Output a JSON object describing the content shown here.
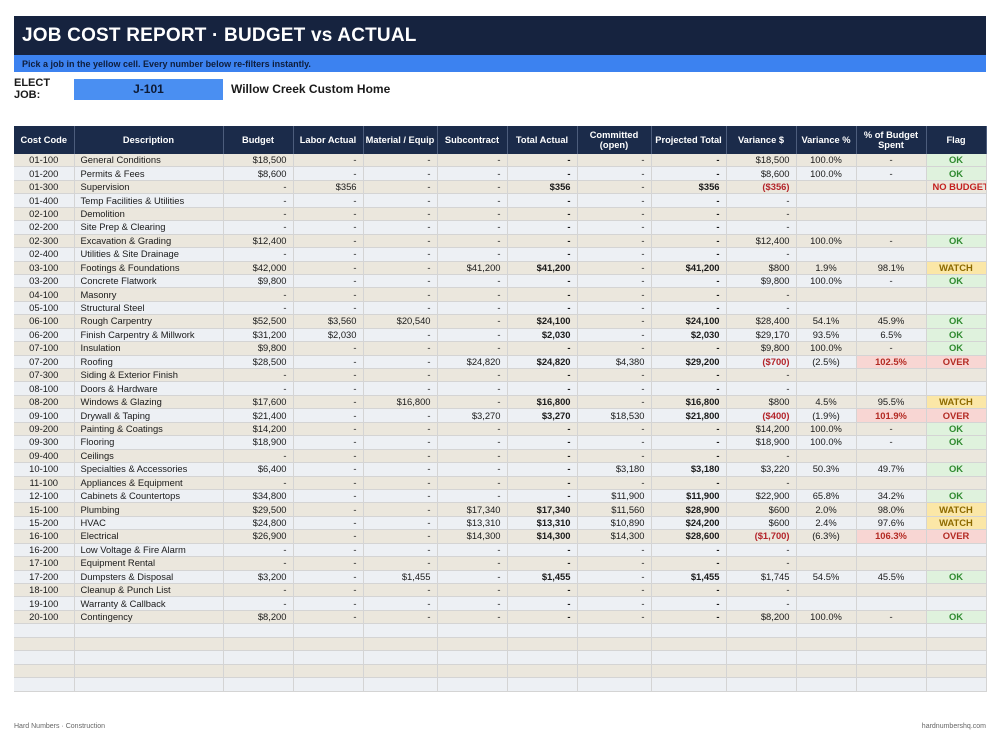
{
  "header": {
    "title": "JOB COST REPORT  ·  BUDGET vs ACTUAL",
    "instruction": "Pick a job in the yellow cell. Every number below re-filters instantly."
  },
  "job": {
    "label": "ELECT JOB:",
    "value": "J-101",
    "name": "Willow Creek Custom Home"
  },
  "columns": [
    "Cost Code",
    "Description",
    "Budget",
    "Labor Actual",
    "Material / Equip",
    "Subcontract",
    "Total Actual",
    "Committed (open)",
    "Projected Total",
    "Variance $",
    "Variance %",
    "% of Budget Spent",
    "Flag"
  ],
  "rows": [
    {
      "code": "01-100",
      "desc": "General Conditions",
      "budget": "$18,500",
      "labor": "-",
      "material": "-",
      "sub": "-",
      "total": "-",
      "committed": "-",
      "projected": "-",
      "var": "$18,500",
      "varpct": "100.0%",
      "spent": "-",
      "flag": "OK",
      "flag_type": "ok"
    },
    {
      "code": "01-200",
      "desc": "Permits & Fees",
      "budget": "$8,600",
      "labor": "-",
      "material": "-",
      "sub": "-",
      "total": "-",
      "committed": "-",
      "projected": "-",
      "var": "$8,600",
      "varpct": "100.0%",
      "spent": "-",
      "flag": "OK",
      "flag_type": "ok"
    },
    {
      "code": "01-300",
      "desc": "Supervision",
      "budget": "-",
      "labor": "$356",
      "material": "-",
      "sub": "-",
      "total": "$356",
      "committed": "-",
      "projected": "$356",
      "var": "($356)",
      "var_red": true,
      "varpct": "",
      "spent": "",
      "flag": "NO BUDGET",
      "flag_type": "nob"
    },
    {
      "code": "01-400",
      "desc": "Temp Facilities & Utilities",
      "budget": "-",
      "labor": "-",
      "material": "-",
      "sub": "-",
      "total": "-",
      "committed": "-",
      "projected": "-",
      "var": "-",
      "varpct": "",
      "spent": "",
      "flag": "",
      "flag_type": ""
    },
    {
      "code": "02-100",
      "desc": "Demolition",
      "budget": "-",
      "labor": "-",
      "material": "-",
      "sub": "-",
      "total": "-",
      "committed": "-",
      "projected": "-",
      "var": "-",
      "varpct": "",
      "spent": "",
      "flag": "",
      "flag_type": ""
    },
    {
      "code": "02-200",
      "desc": "Site Prep & Clearing",
      "budget": "-",
      "labor": "-",
      "material": "-",
      "sub": "-",
      "total": "-",
      "committed": "-",
      "projected": "-",
      "var": "-",
      "varpct": "",
      "spent": "",
      "flag": "",
      "flag_type": ""
    },
    {
      "code": "02-300",
      "desc": "Excavation & Grading",
      "budget": "$12,400",
      "labor": "-",
      "material": "-",
      "sub": "-",
      "total": "-",
      "committed": "-",
      "projected": "-",
      "var": "$12,400",
      "varpct": "100.0%",
      "spent": "-",
      "flag": "OK",
      "flag_type": "ok"
    },
    {
      "code": "02-400",
      "desc": "Utilities & Site Drainage",
      "budget": "-",
      "labor": "-",
      "material": "-",
      "sub": "-",
      "total": "-",
      "committed": "-",
      "projected": "-",
      "var": "-",
      "varpct": "",
      "spent": "",
      "flag": "",
      "flag_type": ""
    },
    {
      "code": "03-100",
      "desc": "Footings & Foundations",
      "budget": "$42,000",
      "labor": "-",
      "material": "-",
      "sub": "$41,200",
      "total": "$41,200",
      "committed": "-",
      "projected": "$41,200",
      "var": "$800",
      "varpct": "1.9%",
      "spent": "98.1%",
      "flag": "WATCH",
      "flag_type": "watch"
    },
    {
      "code": "03-200",
      "desc": "Concrete Flatwork",
      "budget": "$9,800",
      "labor": "-",
      "material": "-",
      "sub": "-",
      "total": "-",
      "committed": "-",
      "projected": "-",
      "var": "$9,800",
      "varpct": "100.0%",
      "spent": "-",
      "flag": "OK",
      "flag_type": "ok"
    },
    {
      "code": "04-100",
      "desc": "Masonry",
      "budget": "-",
      "labor": "-",
      "material": "-",
      "sub": "-",
      "total": "-",
      "committed": "-",
      "projected": "-",
      "var": "-",
      "varpct": "",
      "spent": "",
      "flag": "",
      "flag_type": ""
    },
    {
      "code": "05-100",
      "desc": "Structural Steel",
      "budget": "-",
      "labor": "-",
      "material": "-",
      "sub": "-",
      "total": "-",
      "committed": "-",
      "projected": "-",
      "var": "-",
      "varpct": "",
      "spent": "",
      "flag": "",
      "flag_type": ""
    },
    {
      "code": "06-100",
      "desc": "Rough Carpentry",
      "budget": "$52,500",
      "labor": "$3,560",
      "material": "$20,540",
      "sub": "-",
      "total": "$24,100",
      "committed": "-",
      "projected": "$24,100",
      "var": "$28,400",
      "varpct": "54.1%",
      "spent": "45.9%",
      "flag": "OK",
      "flag_type": "ok"
    },
    {
      "code": "06-200",
      "desc": "Finish Carpentry & Millwork",
      "budget": "$31,200",
      "labor": "$2,030",
      "material": "-",
      "sub": "-",
      "total": "$2,030",
      "committed": "-",
      "projected": "$2,030",
      "var": "$29,170",
      "varpct": "93.5%",
      "spent": "6.5%",
      "flag": "OK",
      "flag_type": "ok"
    },
    {
      "code": "07-100",
      "desc": "Insulation",
      "budget": "$9,800",
      "labor": "-",
      "material": "-",
      "sub": "-",
      "total": "-",
      "committed": "-",
      "projected": "-",
      "var": "$9,800",
      "varpct": "100.0%",
      "spent": "-",
      "flag": "OK",
      "flag_type": "ok"
    },
    {
      "code": "07-200",
      "desc": "Roofing",
      "budget": "$28,500",
      "labor": "-",
      "material": "-",
      "sub": "$24,820",
      "total": "$24,820",
      "committed": "$4,380",
      "projected": "$29,200",
      "var": "($700)",
      "var_red": true,
      "varpct": "(2.5%)",
      "spent": "102.5%",
      "spent_over": true,
      "flag": "OVER",
      "flag_type": "over"
    },
    {
      "code": "07-300",
      "desc": "Siding & Exterior Finish",
      "budget": "-",
      "labor": "-",
      "material": "-",
      "sub": "-",
      "total": "-",
      "committed": "-",
      "projected": "-",
      "var": "-",
      "varpct": "",
      "spent": "",
      "flag": "",
      "flag_type": ""
    },
    {
      "code": "08-100",
      "desc": "Doors & Hardware",
      "budget": "-",
      "labor": "-",
      "material": "-",
      "sub": "-",
      "total": "-",
      "committed": "-",
      "projected": "-",
      "var": "-",
      "varpct": "",
      "spent": "",
      "flag": "",
      "flag_type": ""
    },
    {
      "code": "08-200",
      "desc": "Windows & Glazing",
      "budget": "$17,600",
      "labor": "-",
      "material": "$16,800",
      "sub": "-",
      "total": "$16,800",
      "committed": "-",
      "projected": "$16,800",
      "var": "$800",
      "varpct": "4.5%",
      "spent": "95.5%",
      "flag": "WATCH",
      "flag_type": "watch"
    },
    {
      "code": "09-100",
      "desc": "Drywall & Taping",
      "budget": "$21,400",
      "labor": "-",
      "material": "-",
      "sub": "$3,270",
      "total": "$3,270",
      "committed": "$18,530",
      "projected": "$21,800",
      "var": "($400)",
      "var_red": true,
      "varpct": "(1.9%)",
      "spent": "101.9%",
      "spent_over": true,
      "flag": "OVER",
      "flag_type": "over"
    },
    {
      "code": "09-200",
      "desc": "Painting & Coatings",
      "budget": "$14,200",
      "labor": "-",
      "material": "-",
      "sub": "-",
      "total": "-",
      "committed": "-",
      "projected": "-",
      "var": "$14,200",
      "varpct": "100.0%",
      "spent": "-",
      "flag": "OK",
      "flag_type": "ok"
    },
    {
      "code": "09-300",
      "desc": "Flooring",
      "budget": "$18,900",
      "labor": "-",
      "material": "-",
      "sub": "-",
      "total": "-",
      "committed": "-",
      "projected": "-",
      "var": "$18,900",
      "varpct": "100.0%",
      "spent": "-",
      "flag": "OK",
      "flag_type": "ok"
    },
    {
      "code": "09-400",
      "desc": "Ceilings",
      "budget": "-",
      "labor": "-",
      "material": "-",
      "sub": "-",
      "total": "-",
      "committed": "-",
      "projected": "-",
      "var": "-",
      "varpct": "",
      "spent": "",
      "flag": "",
      "flag_type": ""
    },
    {
      "code": "10-100",
      "desc": "Specialties & Accessories",
      "budget": "$6,400",
      "labor": "-",
      "material": "-",
      "sub": "-",
      "total": "-",
      "committed": "$3,180",
      "projected": "$3,180",
      "var": "$3,220",
      "varpct": "50.3%",
      "spent": "49.7%",
      "flag": "OK",
      "flag_type": "ok"
    },
    {
      "code": "11-100",
      "desc": "Appliances & Equipment",
      "budget": "-",
      "labor": "-",
      "material": "-",
      "sub": "-",
      "total": "-",
      "committed": "-",
      "projected": "-",
      "var": "-",
      "varpct": "",
      "spent": "",
      "flag": "",
      "flag_type": ""
    },
    {
      "code": "12-100",
      "desc": "Cabinets & Countertops",
      "budget": "$34,800",
      "labor": "-",
      "material": "-",
      "sub": "-",
      "total": "-",
      "committed": "$11,900",
      "projected": "$11,900",
      "var": "$22,900",
      "varpct": "65.8%",
      "spent": "34.2%",
      "flag": "OK",
      "flag_type": "ok"
    },
    {
      "code": "15-100",
      "desc": "Plumbing",
      "budget": "$29,500",
      "labor": "-",
      "material": "-",
      "sub": "$17,340",
      "total": "$17,340",
      "committed": "$11,560",
      "projected": "$28,900",
      "var": "$600",
      "varpct": "2.0%",
      "spent": "98.0%",
      "flag": "WATCH",
      "flag_type": "watch"
    },
    {
      "code": "15-200",
      "desc": "HVAC",
      "budget": "$24,800",
      "labor": "-",
      "material": "-",
      "sub": "$13,310",
      "total": "$13,310",
      "committed": "$10,890",
      "projected": "$24,200",
      "var": "$600",
      "varpct": "2.4%",
      "spent": "97.6%",
      "flag": "WATCH",
      "flag_type": "watch"
    },
    {
      "code": "16-100",
      "desc": "Electrical",
      "budget": "$26,900",
      "labor": "-",
      "material": "-",
      "sub": "$14,300",
      "total": "$14,300",
      "committed": "$14,300",
      "projected": "$28,600",
      "var": "($1,700)",
      "var_red": true,
      "varpct": "(6.3%)",
      "spent": "106.3%",
      "spent_over": true,
      "flag": "OVER",
      "flag_type": "over"
    },
    {
      "code": "16-200",
      "desc": "Low Voltage & Fire Alarm",
      "budget": "-",
      "labor": "-",
      "material": "-",
      "sub": "-",
      "total": "-",
      "committed": "-",
      "projected": "-",
      "var": "-",
      "varpct": "",
      "spent": "",
      "flag": "",
      "flag_type": ""
    },
    {
      "code": "17-100",
      "desc": "Equipment Rental",
      "budget": "-",
      "labor": "-",
      "material": "-",
      "sub": "-",
      "total": "-",
      "committed": "-",
      "projected": "-",
      "var": "-",
      "varpct": "",
      "spent": "",
      "flag": "",
      "flag_type": ""
    },
    {
      "code": "17-200",
      "desc": "Dumpsters & Disposal",
      "budget": "$3,200",
      "labor": "-",
      "material": "$1,455",
      "sub": "-",
      "total": "$1,455",
      "committed": "-",
      "projected": "$1,455",
      "var": "$1,745",
      "varpct": "54.5%",
      "spent": "45.5%",
      "flag": "OK",
      "flag_type": "ok"
    },
    {
      "code": "18-100",
      "desc": "Cleanup & Punch List",
      "budget": "-",
      "labor": "-",
      "material": "-",
      "sub": "-",
      "total": "-",
      "committed": "-",
      "projected": "-",
      "var": "-",
      "varpct": "",
      "spent": "",
      "flag": "",
      "flag_type": ""
    },
    {
      "code": "19-100",
      "desc": "Warranty & Callback",
      "budget": "-",
      "labor": "-",
      "material": "-",
      "sub": "-",
      "total": "-",
      "committed": "-",
      "projected": "-",
      "var": "-",
      "varpct": "",
      "spent": "",
      "flag": "",
      "flag_type": ""
    },
    {
      "code": "20-100",
      "desc": "Contingency",
      "budget": "$8,200",
      "labor": "-",
      "material": "-",
      "sub": "-",
      "total": "-",
      "committed": "-",
      "projected": "-",
      "var": "$8,200",
      "varpct": "100.0%",
      "spent": "-",
      "flag": "OK",
      "flag_type": "ok"
    }
  ],
  "footer": {
    "left": "Hard Numbers · Construction",
    "right": "hardnumbershq.com"
  }
}
